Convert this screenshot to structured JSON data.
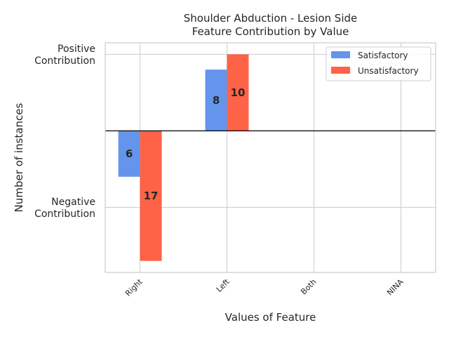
{
  "chart_data": {
    "type": "bar",
    "title": "Shoulder Abduction - Lesion Side\nFeature Contribution by Value",
    "xlabel": "Values of Feature",
    "ylabel": "Number of instances",
    "categories": [
      "Right",
      "Left",
      "Both",
      "NINA"
    ],
    "y_ticks": [
      {
        "value": 10,
        "label": "Positive\nContribution"
      },
      {
        "value": -10,
        "label": "Negative\nContribution"
      }
    ],
    "series": [
      {
        "name": "Satisfactory",
        "color": "#6495ED",
        "values": [
          -6,
          8,
          0,
          0
        ],
        "labels": [
          "6",
          "8",
          "",
          ""
        ]
      },
      {
        "name": "Unsatisfactory",
        "color": "#FF6347",
        "values": [
          -17,
          10,
          0,
          0
        ],
        "labels": [
          "17",
          "10",
          "",
          ""
        ]
      }
    ],
    "ylim": [
      -18.5,
      11.5
    ],
    "grid": true,
    "legend": "top-right"
  }
}
